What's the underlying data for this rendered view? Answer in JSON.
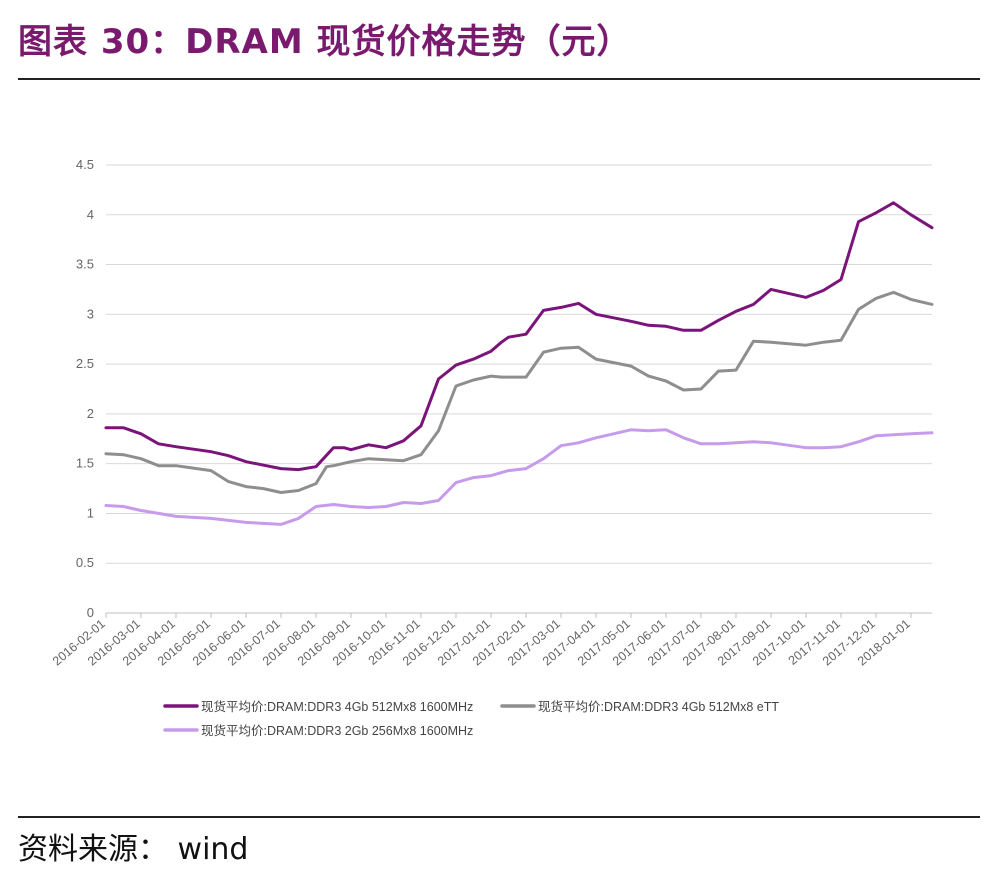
{
  "header": {
    "title": "图表 30：DRAM 现货价格走势（元）"
  },
  "footer": {
    "source": "资料来源：  wind"
  },
  "colors": {
    "series1": "#7b147a",
    "series2": "#8e8e8e",
    "series3": "#c79bec",
    "grid": "#d9d9d9"
  },
  "chart_data": {
    "type": "line",
    "title": "",
    "xlabel": "",
    "ylabel": "",
    "ylim": [
      0,
      4.5
    ],
    "yticks": [
      "0",
      "0.5",
      "1",
      "1.5",
      "2",
      "2.5",
      "3",
      "3.5",
      "4",
      "4.5"
    ],
    "yticks_values": [
      0,
      0.5,
      1,
      1.5,
      2,
      2.5,
      3,
      3.5,
      4,
      4.5
    ],
    "grid": true,
    "legend_position": "bottom",
    "xlim": [
      0,
      23.6
    ],
    "x_categories": [
      "2016-02-01",
      "2016-03-01",
      "2016-04-01",
      "2016-05-01",
      "2016-06-01",
      "2016-07-01",
      "2016-08-01",
      "2016-09-01",
      "2016-10-01",
      "2016-11-01",
      "2016-12-01",
      "2017-01-01",
      "2017-02-01",
      "2017-03-01",
      "2017-04-01",
      "2017-05-01",
      "2017-06-01",
      "2017-07-01",
      "2017-08-01",
      "2017-09-01",
      "2017-10-01",
      "2017-11-01",
      "2017-12-01",
      "2018-01-01"
    ],
    "x_note": "x values are month index, 0 = 2016-02-01",
    "series": [
      {
        "name": "现货平均价:DRAM:DDR3 4Gb 512Mx8 1600MHz",
        "color_key": "series1",
        "x": [
          0,
          0.5,
          1,
          1.5,
          2,
          3,
          3.5,
          4,
          5,
          5.5,
          6,
          6.5,
          6.8,
          7,
          7.5,
          8,
          8.5,
          9,
          9.5,
          10,
          10.5,
          11,
          11.3,
          11.5,
          12,
          12.5,
          13,
          13.5,
          14,
          15,
          15.5,
          16,
          16.5,
          17,
          17.5,
          18,
          18.5,
          19,
          20,
          20.5,
          21,
          21.5,
          22,
          22.5,
          23,
          23.6
        ],
        "values": [
          1.86,
          1.86,
          1.8,
          1.7,
          1.67,
          1.62,
          1.58,
          1.52,
          1.45,
          1.44,
          1.47,
          1.66,
          1.66,
          1.64,
          1.69,
          1.66,
          1.73,
          1.88,
          2.35,
          2.49,
          2.55,
          2.63,
          2.72,
          2.77,
          2.8,
          3.04,
          3.07,
          3.11,
          3,
          2.93,
          2.89,
          2.88,
          2.84,
          2.84,
          2.94,
          3.03,
          3.1,
          3.25,
          3.17,
          3.24,
          3.35,
          3.93,
          4.02,
          4.12,
          4,
          3.87
        ]
      },
      {
        "name": "现货平均价:DRAM:DDR3 4Gb 512Mx8 eTT",
        "color_key": "series2",
        "x": [
          0,
          0.5,
          1,
          1.5,
          2,
          3,
          3.5,
          4,
          4.5,
          5,
          5.5,
          6,
          6.3,
          6.5,
          7,
          7.5,
          8,
          8.5,
          9,
          9.5,
          10,
          10.5,
          11,
          11.3,
          11.5,
          12,
          12.5,
          13,
          13.5,
          14,
          15,
          15.5,
          16,
          16.5,
          17,
          17.5,
          18,
          18.5,
          19,
          20,
          20.5,
          21,
          21.5,
          22,
          22.5,
          23,
          23.6
        ],
        "values": [
          1.6,
          1.59,
          1.55,
          1.48,
          1.48,
          1.43,
          1.32,
          1.27,
          1.25,
          1.21,
          1.23,
          1.3,
          1.47,
          1.48,
          1.52,
          1.55,
          1.54,
          1.53,
          1.59,
          1.83,
          2.28,
          2.34,
          2.38,
          2.37,
          2.37,
          2.37,
          2.62,
          2.66,
          2.67,
          2.55,
          2.48,
          2.38,
          2.33,
          2.24,
          2.25,
          2.43,
          2.44,
          2.73,
          2.72,
          2.69,
          2.72,
          2.74,
          3.05,
          3.16,
          3.22,
          3.15,
          3.1
        ]
      },
      {
        "name": "现货平均价:DRAM:DDR3 2Gb 256Mx8 1600MHz",
        "color_key": "series3",
        "x": [
          0,
          0.5,
          1,
          1.5,
          2,
          3,
          3.5,
          4,
          4.5,
          5,
          5.5,
          6,
          6.5,
          7,
          7.5,
          8,
          8.5,
          9,
          9.5,
          10,
          10.5,
          11,
          11.5,
          12,
          12.5,
          13,
          13.5,
          14,
          15,
          15.5,
          16,
          16.5,
          17,
          17.5,
          18,
          18.5,
          19,
          20,
          20.5,
          21,
          21.5,
          22,
          22.5,
          23,
          23.6
        ],
        "values": [
          1.08,
          1.07,
          1.03,
          1,
          0.97,
          0.95,
          0.93,
          0.91,
          0.9,
          0.89,
          0.95,
          1.07,
          1.09,
          1.07,
          1.06,
          1.07,
          1.11,
          1.1,
          1.13,
          1.31,
          1.36,
          1.38,
          1.43,
          1.45,
          1.55,
          1.68,
          1.71,
          1.76,
          1.84,
          1.83,
          1.84,
          1.76,
          1.7,
          1.7,
          1.71,
          1.72,
          1.71,
          1.66,
          1.66,
          1.67,
          1.72,
          1.78,
          1.79,
          1.8,
          1.81
        ]
      }
    ]
  }
}
